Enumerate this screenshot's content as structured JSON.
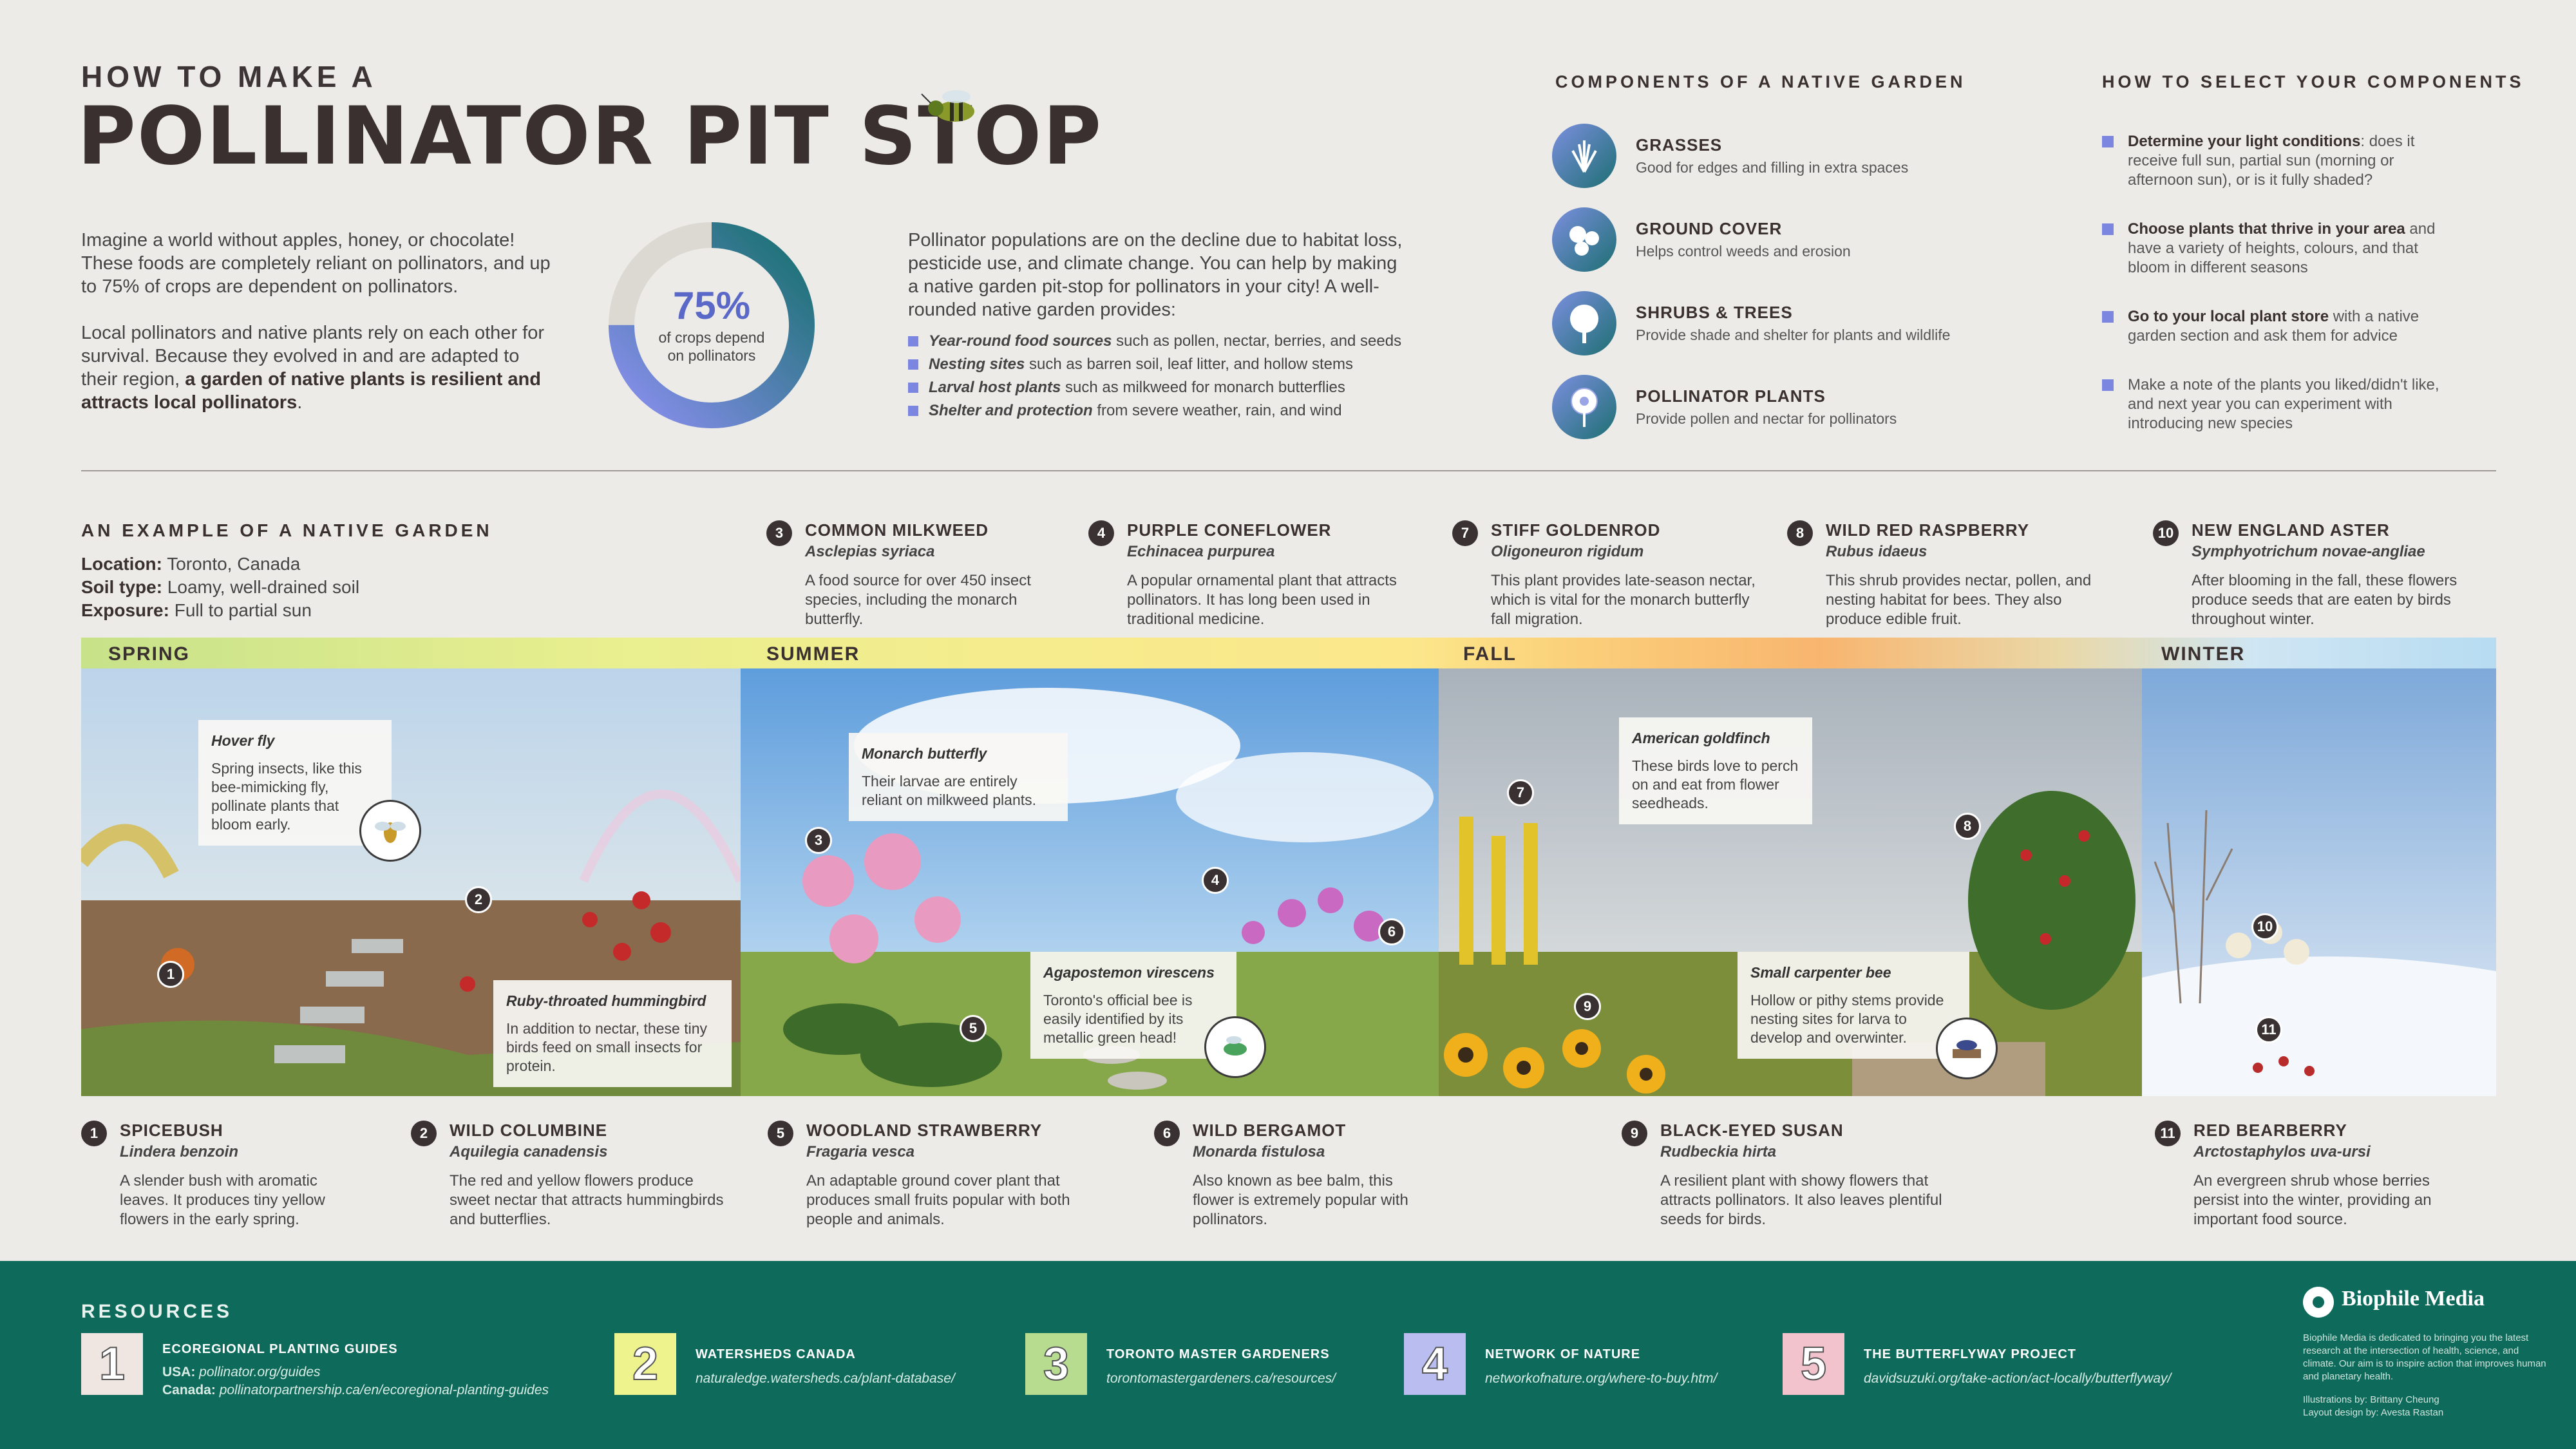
{
  "header": {
    "kicker": "HOW TO MAKE A",
    "title": "POLLINATOR PIT STOP"
  },
  "intro": {
    "p1": "Imagine a world without apples, honey, or chocolate! These foods are completely reliant on pollinators, and up to 75% of crops are dependent on pollinators.",
    "p2a": "Local pollinators and native plants rely on each other for survival. Because they evolved in and are adapted to their region, ",
    "p2b": "a garden of native plants is resilient and attracts local pollinators",
    "p2c": "."
  },
  "donut": {
    "percent": "75%",
    "caption": "of crops depend on pollinators",
    "value": 0.75
  },
  "decline": {
    "text": "Pollinator populations are on the decline due to habitat loss, pesticide use, and climate change. You can help by making a native garden pit-stop for pollinators in your city! A well-rounded native garden provides:",
    "items": [
      {
        "b": "Year-round food sources",
        "r": " such as pollen, nectar, berries, and seeds"
      },
      {
        "b": "Nesting sites",
        "r": " such as barren soil, leaf litter, and hollow stems"
      },
      {
        "b": "Larval host plants",
        "r": " such as milkweed for monarch butterflies"
      },
      {
        "b": "Shelter and protection",
        "r": " from severe weather, rain, and wind"
      }
    ]
  },
  "components": {
    "title": "COMPONENTS OF A NATIVE GARDEN",
    "items": [
      {
        "name": "GRASSES",
        "desc": "Good for edges and filling in extra spaces",
        "icon": "grass-icon"
      },
      {
        "name": "GROUND COVER",
        "desc": "Helps control weeds and erosion",
        "icon": "ground-cover-icon"
      },
      {
        "name": "SHRUBS & TREES",
        "desc": "Provide shade and shelter for plants and wildlife",
        "icon": "tree-icon"
      },
      {
        "name": "POLLINATOR PLANTS",
        "desc": "Provide pollen and nectar for pollinators",
        "icon": "flower-icon"
      }
    ]
  },
  "select": {
    "title": "HOW TO SELECT YOUR COMPONENTS",
    "items": [
      {
        "b": "Determine your light conditions",
        "r": ": does it receive full sun, partial sun (morning or afternoon sun), or is it fully shaded?"
      },
      {
        "b": "Choose plants that thrive in your area",
        "r": " and have a variety of heights, colours, and that bloom in different seasons"
      },
      {
        "b": "Go to your local plant store",
        "r": " with a native garden section and ask them for advice"
      },
      {
        "b": "",
        "r": "Make a note of the plants you liked/didn't like, and next year you can experiment with introducing new species"
      }
    ]
  },
  "example": {
    "title": "AN EXAMPLE OF A NATIVE GARDEN",
    "location_l": "Location:",
    "location": " Toronto, Canada",
    "soil_l": "Soil type:",
    "soil": " Loamy, well-drained soil",
    "exposure_l": "Exposure:",
    "exposure": " Full to partial sun"
  },
  "plants": {
    "p1": {
      "n": "1",
      "name": "SPICEBUSH",
      "sci": "Lindera benzoin",
      "desc": "A slender bush with aromatic leaves. It produces tiny yellow flowers in the early spring."
    },
    "p2": {
      "n": "2",
      "name": "WILD COLUMBINE",
      "sci": "Aquilegia canadensis",
      "desc": "The red and yellow flowers produce sweet nectar that attracts hummingbirds and butterflies."
    },
    "p3": {
      "n": "3",
      "name": "COMMON MILKWEED",
      "sci": "Asclepias syriaca",
      "desc": "A food source for over 450 insect species, including the monarch butterfly."
    },
    "p4": {
      "n": "4",
      "name": "PURPLE CONEFLOWER",
      "sci": "Echinacea purpurea",
      "desc": "A popular ornamental plant that attracts pollinators. It has long been used in traditional medicine."
    },
    "p5": {
      "n": "5",
      "name": "WOODLAND STRAWBERRY",
      "sci": "Fragaria vesca",
      "desc": "An adaptable ground cover plant that produces small fruits popular with both people and animals."
    },
    "p6": {
      "n": "6",
      "name": "WILD BERGAMOT",
      "sci": "Monarda fistulosa",
      "desc": "Also known as bee balm, this flower is extremely popular with pollinators."
    },
    "p7": {
      "n": "7",
      "name": "STIFF GOLDENROD",
      "sci": "Oligoneuron rigidum",
      "desc": "This plant provides late-season nectar, which is vital for the monarch butterfly fall migration."
    },
    "p8": {
      "n": "8",
      "name": "WILD RED RASPBERRY",
      "sci": "Rubus idaeus",
      "desc": "This shrub provides nectar, pollen, and nesting habitat for bees. They also produce edible fruit."
    },
    "p9": {
      "n": "9",
      "name": "BLACK-EYED SUSAN",
      "sci": "Rudbeckia hirta",
      "desc": "A resilient plant with showy flowers that attracts pollinators. It also leaves plentiful seeds for birds."
    },
    "p10": {
      "n": "10",
      "name": "NEW ENGLAND ASTER",
      "sci": "Symphyotrichum novae-angliae",
      "desc": "After blooming in the fall, these flowers produce seeds that are eaten by birds throughout winter."
    },
    "p11": {
      "n": "11",
      "name": "RED BEARBERRY",
      "sci": "Arctostaphylos uva-ursi",
      "desc": "An evergreen shrub whose berries persist into the winter, providing an important food source."
    }
  },
  "seasons": {
    "spring": "SPRING",
    "summer": "SUMMER",
    "fall": "FALL",
    "winter": "WINTER"
  },
  "cards": {
    "hoverfly": {
      "t": "Hover fly",
      "d": "Spring insects, like this bee-mimicking fly, pollinate plants that bloom early."
    },
    "hummingbird": {
      "t": "Ruby-throated hummingbird",
      "d": "In addition to nectar, these tiny birds feed on small insects for protein."
    },
    "monarch": {
      "t": "Monarch butterfly",
      "d": "Their larvae are entirely reliant on milkweed plants."
    },
    "agapostemon": {
      "t": "Agapostemon virescens",
      "d": "Toronto's official bee is easily identified by its metallic green head!"
    },
    "goldfinch": {
      "t": "American goldfinch",
      "d": "These birds love to perch on and eat from flower seedheads."
    },
    "carpenter": {
      "t": "Small carpenter bee",
      "d": "Hollow or pithy stems provide nesting sites for larva to develop and overwinter."
    }
  },
  "resources": {
    "title": "RESOURCES",
    "items": [
      {
        "n": "1",
        "t": "ECOREGIONAL PLANTING GUIDES",
        "usa_l": "USA:",
        "usa": " pollinator.org/guides",
        "can_l": "Canada:",
        "can": " pollinatorpartnership.ca/en/ecoregional-planting-guides",
        "color": "#f0e6e1"
      },
      {
        "n": "2",
        "t": "WATERSHEDS CANADA",
        "u": "naturaledge.watersheds.ca/plant-database/",
        "color": "#eef38d"
      },
      {
        "n": "3",
        "t": "TORONTO MASTER GARDENERS",
        "u": "torontomastergardeners.ca/resources/",
        "color": "#b8dc8f"
      },
      {
        "n": "4",
        "t": "NETWORK OF NATURE",
        "u": "networkofnature.org/where-to-buy.htm/",
        "color": "#b9bdf0"
      },
      {
        "n": "5",
        "t": "THE BUTTERFLYWAY PROJECT",
        "u": "davidsuzuki.org/take-action/act-locally/butterflyway/",
        "color": "#f2c2cd"
      }
    ]
  },
  "brand": {
    "name": "Biophile Media",
    "desc": "Biophile Media is dedicated to bringing you the latest research at the intersection of health, science, and climate. Our aim is to inspire action that improves human and planetary health.",
    "ill": "Illustrations by: Brittany Cheung",
    "lay": "Layout design by: Avesta Rastan"
  },
  "colors": {
    "accent": "#5a68c8",
    "teal": "#1d6f72",
    "footer": "#0e6b5b",
    "dark": "#3a3030"
  }
}
